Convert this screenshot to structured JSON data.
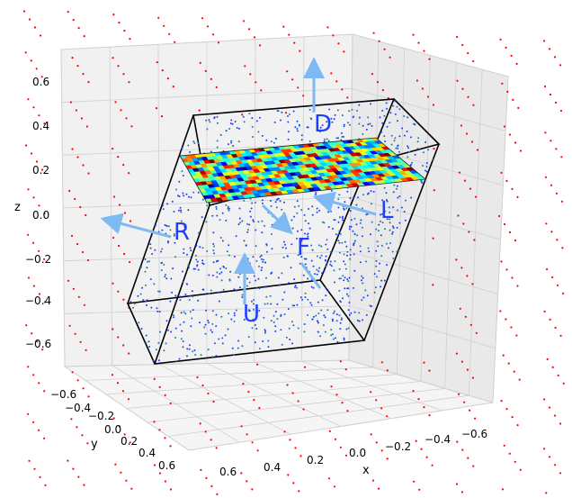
{
  "chart_data": {
    "type": "scatter",
    "projection": "3d",
    "grid": true,
    "xlabel": "x",
    "ylabel": "y",
    "zlabel": "z",
    "x_ticks": [
      "0.6",
      "0.4",
      "0.2",
      "0.0",
      "−0.2",
      "−0.4",
      "−0.6"
    ],
    "y_ticks": [
      "−0.6",
      "−0.4",
      "−0.2",
      "0.0",
      "0.2",
      "0.4",
      "0.6"
    ],
    "z_ticks": [
      "0.6",
      "0.4",
      "0.2",
      "0.0",
      "−0.2",
      "−0.4",
      "−0.6"
    ],
    "xlim": [
      -0.7,
      0.7
    ],
    "ylim": [
      -0.7,
      0.7
    ],
    "zlim": [
      -0.7,
      0.7
    ],
    "face_labels": [
      "D",
      "L",
      "R",
      "F",
      "U"
    ],
    "series": [
      {
        "color": "#ff0000",
        "marker": "dot"
      },
      {
        "color": "#1f3fff",
        "marker": "dot"
      },
      {
        "color": "#1f77b4",
        "marker": "dot"
      }
    ],
    "surface": {
      "colormap": "jet"
    },
    "colors": {
      "box_edge": "#000000",
      "arrow": "#7db9f2",
      "label": "#1f3fff",
      "pane": "#f2f2f2",
      "grid": "#d0d0d0"
    }
  }
}
